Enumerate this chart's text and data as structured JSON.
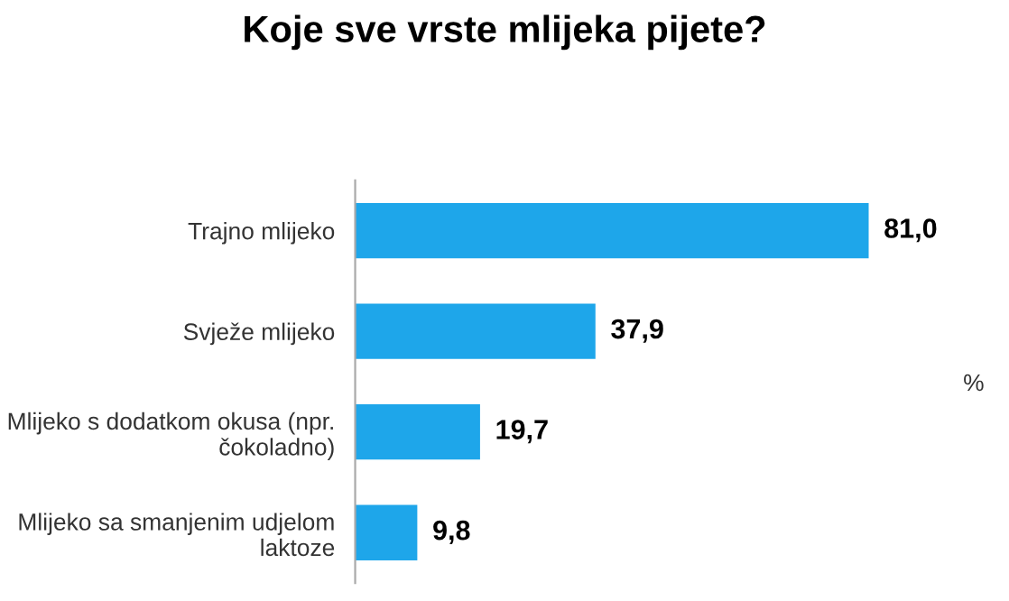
{
  "chart_data": {
    "type": "bar",
    "orientation": "horizontal",
    "title": "Koje sve vrste mlijeka pijete?",
    "categories": [
      "Trajno mlijeko",
      "Svježe mlijeko",
      "Mlijeko s dodatkom okusa (npr. čokoladno)",
      "Mlijeko sa smanjenim udjelom laktoze"
    ],
    "values": [
      81.0,
      37.9,
      19.7,
      9.8
    ],
    "value_labels": [
      "81,0",
      "37,9",
      "19,7",
      "9,8"
    ],
    "color": "#1ea6ea",
    "tick_labels": "y",
    "grid": false,
    "annotations": [
      "%"
    ]
  }
}
